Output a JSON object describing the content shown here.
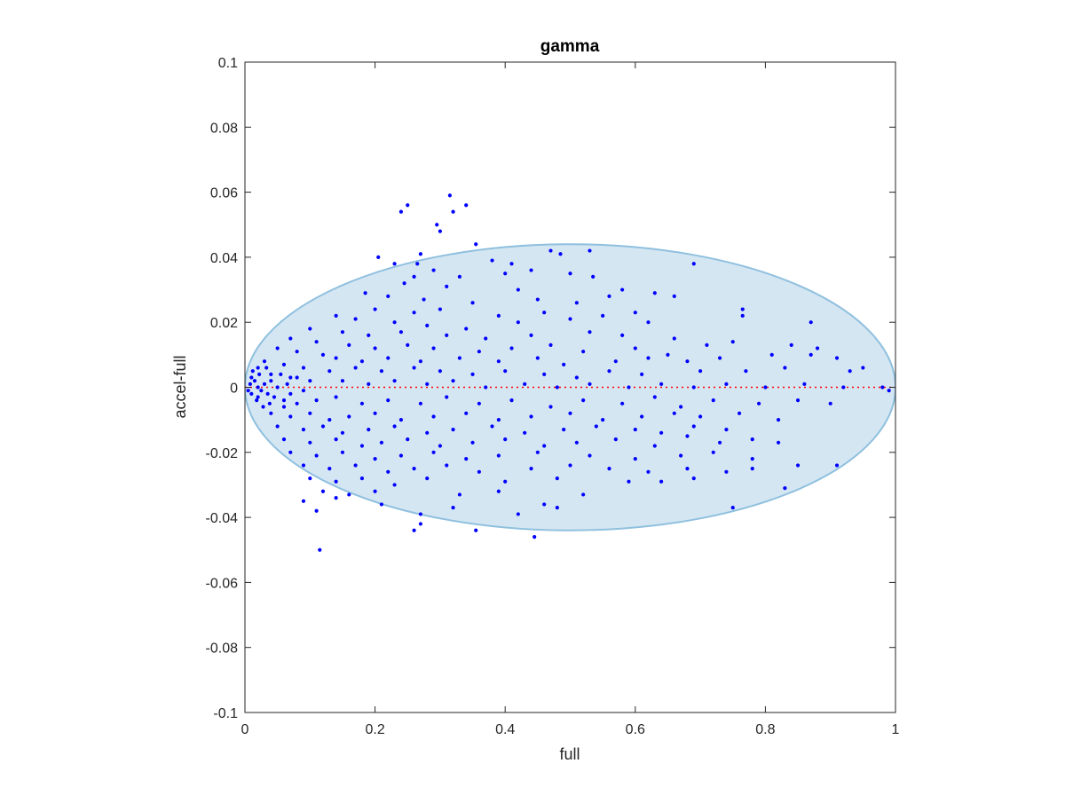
{
  "chart_data": {
    "type": "scatter",
    "title": "gamma",
    "xlabel": "full",
    "ylabel": "accel-full",
    "xlim": [
      0,
      1
    ],
    "ylim": [
      -0.1,
      0.1
    ],
    "x_ticks": [
      0,
      0.2,
      0.4,
      0.6,
      0.8,
      1
    ],
    "x_tick_labels": [
      "0",
      "0.2",
      "0.4",
      "0.6",
      "0.8",
      "1"
    ],
    "y_ticks": [
      -0.1,
      -0.08,
      -0.06,
      -0.04,
      -0.02,
      0,
      0.02,
      0.04,
      0.06,
      0.08,
      0.1
    ],
    "y_tick_labels": [
      "-0.1",
      "-0.08",
      "-0.06",
      "-0.04",
      "-0.02",
      "0",
      "0.02",
      "0.04",
      "0.06",
      "0.08",
      "0.1"
    ],
    "grid": false,
    "legend": "none",
    "reference_line": {
      "y": 0,
      "style": "dotted",
      "color": "#ff0000"
    },
    "ellipse": {
      "cx": 0.5,
      "cy": 0.0,
      "rx": 0.5,
      "ry": 0.044,
      "fill": "#d5e6f3",
      "stroke": "#8fc0de"
    },
    "series": [
      {
        "color": "#0000ff",
        "points": [
          [
            0.315,
            0.059
          ],
          [
            0.25,
            0.056
          ],
          [
            0.34,
            0.056
          ],
          [
            0.24,
            0.054
          ],
          [
            0.32,
            0.054
          ],
          [
            0.295,
            0.05
          ],
          [
            0.3,
            0.048
          ],
          [
            0.355,
            0.044
          ],
          [
            0.205,
            0.04
          ],
          [
            0.27,
            0.041
          ],
          [
            0.265,
            0.038
          ],
          [
            0.38,
            0.039
          ],
          [
            0.41,
            0.038
          ],
          [
            0.47,
            0.042
          ],
          [
            0.485,
            0.041
          ],
          [
            0.53,
            0.042
          ],
          [
            0.69,
            0.038
          ],
          [
            0.23,
            0.038
          ],
          [
            0.29,
            0.036
          ],
          [
            0.33,
            0.034
          ],
          [
            0.4,
            0.035
          ],
          [
            0.44,
            0.036
          ],
          [
            0.5,
            0.035
          ],
          [
            0.535,
            0.034
          ],
          [
            0.26,
            0.034
          ],
          [
            0.245,
            0.032
          ],
          [
            0.31,
            0.031
          ],
          [
            0.42,
            0.03
          ],
          [
            0.56,
            0.028
          ],
          [
            0.58,
            0.03
          ],
          [
            0.185,
            0.029
          ],
          [
            0.22,
            0.028
          ],
          [
            0.275,
            0.027
          ],
          [
            0.35,
            0.026
          ],
          [
            0.45,
            0.027
          ],
          [
            0.51,
            0.026
          ],
          [
            0.63,
            0.029
          ],
          [
            0.66,
            0.028
          ],
          [
            0.2,
            0.024
          ],
          [
            0.26,
            0.023
          ],
          [
            0.3,
            0.024
          ],
          [
            0.39,
            0.022
          ],
          [
            0.46,
            0.023
          ],
          [
            0.55,
            0.022
          ],
          [
            0.6,
            0.023
          ],
          [
            0.765,
            0.024
          ],
          [
            0.14,
            0.022
          ],
          [
            0.17,
            0.021
          ],
          [
            0.23,
            0.02
          ],
          [
            0.28,
            0.019
          ],
          [
            0.34,
            0.018
          ],
          [
            0.42,
            0.02
          ],
          [
            0.5,
            0.021
          ],
          [
            0.62,
            0.02
          ],
          [
            0.765,
            0.022
          ],
          [
            0.87,
            0.02
          ],
          [
            0.1,
            0.018
          ],
          [
            0.15,
            0.017
          ],
          [
            0.19,
            0.016
          ],
          [
            0.24,
            0.017
          ],
          [
            0.31,
            0.016
          ],
          [
            0.37,
            0.015
          ],
          [
            0.44,
            0.016
          ],
          [
            0.53,
            0.017
          ],
          [
            0.58,
            0.016
          ],
          [
            0.66,
            0.015
          ],
          [
            0.75,
            0.014
          ],
          [
            0.07,
            0.015
          ],
          [
            0.11,
            0.014
          ],
          [
            0.16,
            0.013
          ],
          [
            0.2,
            0.012
          ],
          [
            0.25,
            0.013
          ],
          [
            0.29,
            0.012
          ],
          [
            0.36,
            0.011
          ],
          [
            0.41,
            0.012
          ],
          [
            0.47,
            0.013
          ],
          [
            0.52,
            0.011
          ],
          [
            0.6,
            0.012
          ],
          [
            0.65,
            0.01
          ],
          [
            0.71,
            0.013
          ],
          [
            0.84,
            0.013
          ],
          [
            0.88,
            0.012
          ],
          [
            0.05,
            0.012
          ],
          [
            0.08,
            0.011
          ],
          [
            0.12,
            0.01
          ],
          [
            0.14,
            0.009
          ],
          [
            0.18,
            0.008
          ],
          [
            0.22,
            0.009
          ],
          [
            0.27,
            0.008
          ],
          [
            0.33,
            0.009
          ],
          [
            0.39,
            0.008
          ],
          [
            0.45,
            0.009
          ],
          [
            0.49,
            0.007
          ],
          [
            0.57,
            0.008
          ],
          [
            0.62,
            0.009
          ],
          [
            0.68,
            0.008
          ],
          [
            0.73,
            0.009
          ],
          [
            0.81,
            0.01
          ],
          [
            0.87,
            0.01
          ],
          [
            0.91,
            0.009
          ],
          [
            0.03,
            0.008
          ],
          [
            0.06,
            0.007
          ],
          [
            0.09,
            0.006
          ],
          [
            0.13,
            0.005
          ],
          [
            0.17,
            0.006
          ],
          [
            0.21,
            0.005
          ],
          [
            0.26,
            0.006
          ],
          [
            0.3,
            0.005
          ],
          [
            0.35,
            0.004
          ],
          [
            0.4,
            0.005
          ],
          [
            0.46,
            0.004
          ],
          [
            0.51,
            0.003
          ],
          [
            0.56,
            0.005
          ],
          [
            0.61,
            0.004
          ],
          [
            0.7,
            0.005
          ],
          [
            0.77,
            0.005
          ],
          [
            0.83,
            0.006
          ],
          [
            0.93,
            0.005
          ],
          [
            0.95,
            0.006
          ],
          [
            0.02,
            0.006
          ],
          [
            0.04,
            0.004
          ],
          [
            0.07,
            0.003
          ],
          [
            0.1,
            0.002
          ],
          [
            0.15,
            0.002
          ],
          [
            0.19,
            0.001
          ],
          [
            0.23,
            0.002
          ],
          [
            0.28,
            0.001
          ],
          [
            0.32,
            0.002
          ],
          [
            0.37,
            0.0
          ],
          [
            0.43,
            0.001
          ],
          [
            0.48,
            0.0
          ],
          [
            0.53,
            0.001
          ],
          [
            0.59,
            0.0
          ],
          [
            0.64,
            0.001
          ],
          [
            0.69,
            0.0
          ],
          [
            0.74,
            0.001
          ],
          [
            0.8,
            0.0
          ],
          [
            0.86,
            0.001
          ],
          [
            0.92,
            0.0
          ],
          [
            0.98,
            0.0
          ],
          [
            0.99,
            -0.001
          ],
          [
            0.01,
            0.003
          ],
          [
            0.015,
            0.002
          ],
          [
            0.02,
            0.0
          ],
          [
            0.025,
            -0.001
          ],
          [
            0.03,
            0.001
          ],
          [
            0.035,
            -0.002
          ],
          [
            0.04,
            0.002
          ],
          [
            0.045,
            -0.003
          ],
          [
            0.05,
            0.0
          ],
          [
            0.055,
            0.004
          ],
          [
            0.06,
            -0.004
          ],
          [
            0.065,
            0.001
          ],
          [
            0.07,
            -0.002
          ],
          [
            0.08,
            0.003
          ],
          [
            0.09,
            -0.001
          ],
          [
            0.01,
            -0.002
          ],
          [
            0.012,
            0.005
          ],
          [
            0.018,
            -0.004
          ],
          [
            0.008,
            0.001
          ],
          [
            0.005,
            -0.001
          ],
          [
            0.022,
            0.004
          ],
          [
            0.028,
            -0.006
          ],
          [
            0.033,
            0.006
          ],
          [
            0.038,
            -0.005
          ],
          [
            0.02,
            -0.003
          ],
          [
            0.06,
            -0.006
          ],
          [
            0.08,
            -0.005
          ],
          [
            0.11,
            -0.004
          ],
          [
            0.14,
            -0.003
          ],
          [
            0.18,
            -0.005
          ],
          [
            0.22,
            -0.004
          ],
          [
            0.27,
            -0.005
          ],
          [
            0.31,
            -0.003
          ],
          [
            0.36,
            -0.005
          ],
          [
            0.41,
            -0.004
          ],
          [
            0.47,
            -0.006
          ],
          [
            0.52,
            -0.004
          ],
          [
            0.58,
            -0.005
          ],
          [
            0.63,
            -0.003
          ],
          [
            0.67,
            -0.006
          ],
          [
            0.72,
            -0.004
          ],
          [
            0.79,
            -0.005
          ],
          [
            0.85,
            -0.004
          ],
          [
            0.9,
            -0.005
          ],
          [
            0.04,
            -0.008
          ],
          [
            0.07,
            -0.009
          ],
          [
            0.1,
            -0.008
          ],
          [
            0.13,
            -0.01
          ],
          [
            0.16,
            -0.009
          ],
          [
            0.2,
            -0.008
          ],
          [
            0.24,
            -0.01
          ],
          [
            0.29,
            -0.009
          ],
          [
            0.34,
            -0.008
          ],
          [
            0.39,
            -0.01
          ],
          [
            0.44,
            -0.009
          ],
          [
            0.5,
            -0.008
          ],
          [
            0.55,
            -0.01
          ],
          [
            0.61,
            -0.009
          ],
          [
            0.66,
            -0.008
          ],
          [
            0.7,
            -0.009
          ],
          [
            0.76,
            -0.008
          ],
          [
            0.82,
            -0.01
          ],
          [
            0.05,
            -0.012
          ],
          [
            0.09,
            -0.013
          ],
          [
            0.12,
            -0.012
          ],
          [
            0.15,
            -0.014
          ],
          [
            0.19,
            -0.013
          ],
          [
            0.23,
            -0.012
          ],
          [
            0.28,
            -0.014
          ],
          [
            0.32,
            -0.013
          ],
          [
            0.38,
            -0.012
          ],
          [
            0.43,
            -0.014
          ],
          [
            0.49,
            -0.013
          ],
          [
            0.54,
            -0.012
          ],
          [
            0.6,
            -0.013
          ],
          [
            0.64,
            -0.014
          ],
          [
            0.69,
            -0.012
          ],
          [
            0.74,
            -0.013
          ],
          [
            0.06,
            -0.016
          ],
          [
            0.1,
            -0.017
          ],
          [
            0.14,
            -0.016
          ],
          [
            0.18,
            -0.018
          ],
          [
            0.21,
            -0.017
          ],
          [
            0.25,
            -0.016
          ],
          [
            0.3,
            -0.018
          ],
          [
            0.35,
            -0.017
          ],
          [
            0.4,
            -0.016
          ],
          [
            0.46,
            -0.018
          ],
          [
            0.51,
            -0.017
          ],
          [
            0.57,
            -0.016
          ],
          [
            0.63,
            -0.018
          ],
          [
            0.68,
            -0.015
          ],
          [
            0.73,
            -0.017
          ],
          [
            0.78,
            -0.016
          ],
          [
            0.82,
            -0.017
          ],
          [
            0.07,
            -0.02
          ],
          [
            0.11,
            -0.021
          ],
          [
            0.15,
            -0.02
          ],
          [
            0.2,
            -0.022
          ],
          [
            0.24,
            -0.021
          ],
          [
            0.29,
            -0.02
          ],
          [
            0.34,
            -0.022
          ],
          [
            0.39,
            -0.021
          ],
          [
            0.45,
            -0.02
          ],
          [
            0.53,
            -0.021
          ],
          [
            0.6,
            -0.022
          ],
          [
            0.67,
            -0.021
          ],
          [
            0.72,
            -0.02
          ],
          [
            0.78,
            -0.022
          ],
          [
            0.09,
            -0.024
          ],
          [
            0.13,
            -0.025
          ],
          [
            0.17,
            -0.024
          ],
          [
            0.22,
            -0.026
          ],
          [
            0.26,
            -0.025
          ],
          [
            0.31,
            -0.024
          ],
          [
            0.36,
            -0.026
          ],
          [
            0.44,
            -0.025
          ],
          [
            0.5,
            -0.024
          ],
          [
            0.56,
            -0.025
          ],
          [
            0.62,
            -0.026
          ],
          [
            0.68,
            -0.025
          ],
          [
            0.74,
            -0.026
          ],
          [
            0.78,
            -0.025
          ],
          [
            0.85,
            -0.024
          ],
          [
            0.91,
            -0.024
          ],
          [
            0.1,
            -0.028
          ],
          [
            0.14,
            -0.029
          ],
          [
            0.18,
            -0.028
          ],
          [
            0.23,
            -0.03
          ],
          [
            0.28,
            -0.028
          ],
          [
            0.4,
            -0.029
          ],
          [
            0.48,
            -0.028
          ],
          [
            0.59,
            -0.029
          ],
          [
            0.64,
            -0.029
          ],
          [
            0.69,
            -0.028
          ],
          [
            0.12,
            -0.032
          ],
          [
            0.16,
            -0.033
          ],
          [
            0.2,
            -0.032
          ],
          [
            0.33,
            -0.033
          ],
          [
            0.39,
            -0.032
          ],
          [
            0.52,
            -0.033
          ],
          [
            0.83,
            -0.031
          ],
          [
            0.09,
            -0.035
          ],
          [
            0.14,
            -0.034
          ],
          [
            0.21,
            -0.036
          ],
          [
            0.32,
            -0.037
          ],
          [
            0.46,
            -0.036
          ],
          [
            0.48,
            -0.037
          ],
          [
            0.75,
            -0.037
          ],
          [
            0.11,
            -0.038
          ],
          [
            0.27,
            -0.039
          ],
          [
            0.42,
            -0.039
          ],
          [
            0.26,
            -0.044
          ],
          [
            0.27,
            -0.042
          ],
          [
            0.355,
            -0.044
          ],
          [
            0.445,
            -0.046
          ],
          [
            0.115,
            -0.05
          ]
        ]
      }
    ]
  }
}
